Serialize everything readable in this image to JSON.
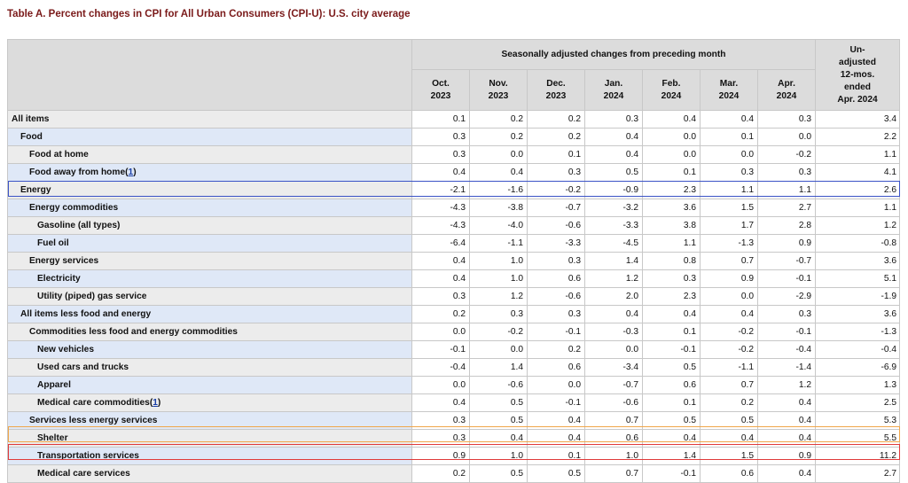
{
  "title": "Table A. Percent changes in CPI for All Urban Consumers (CPI-U): U.S. city average",
  "header": {
    "group_label": "Seasonally adjusted changes from preceding month",
    "months": [
      {
        "month": "Oct.",
        "year": "2023"
      },
      {
        "month": "Nov.",
        "year": "2023"
      },
      {
        "month": "Dec.",
        "year": "2023"
      },
      {
        "month": "Jan.",
        "year": "2024"
      },
      {
        "month": "Feb.",
        "year": "2024"
      },
      {
        "month": "Mar.",
        "year": "2024"
      },
      {
        "month": "Apr.",
        "year": "2024"
      }
    ],
    "unadjusted": {
      "l1": "Un-",
      "l2": "adjusted",
      "l3": "12-mos.",
      "l4": "ended",
      "l5": "Apr. 2024"
    }
  },
  "footnote_marker": "1",
  "highlights": {
    "energy": "#3b53c6",
    "shelter": "#f0a64a",
    "transportation": "#e03a3a"
  },
  "rows": [
    {
      "label": "All items",
      "indent": 0,
      "values": [
        "0.1",
        "0.2",
        "0.2",
        "0.3",
        "0.4",
        "0.4",
        "0.3"
      ],
      "unadj": "3.4"
    },
    {
      "label": "Food",
      "indent": 1,
      "values": [
        "0.3",
        "0.2",
        "0.2",
        "0.4",
        "0.0",
        "0.1",
        "0.0"
      ],
      "unadj": "2.2"
    },
    {
      "label": "Food at home",
      "indent": 2,
      "values": [
        "0.3",
        "0.0",
        "0.1",
        "0.4",
        "0.0",
        "0.0",
        "-0.2"
      ],
      "unadj": "1.1"
    },
    {
      "label": "Food away from home",
      "indent": 2,
      "footnote": true,
      "values": [
        "0.4",
        "0.4",
        "0.3",
        "0.5",
        "0.1",
        "0.3",
        "0.3"
      ],
      "unadj": "4.1"
    },
    {
      "label": "Energy",
      "indent": 1,
      "values": [
        "-2.1",
        "-1.6",
        "-0.2",
        "-0.9",
        "2.3",
        "1.1",
        "1.1"
      ],
      "unadj": "2.6"
    },
    {
      "label": "Energy commodities",
      "indent": 2,
      "values": [
        "-4.3",
        "-3.8",
        "-0.7",
        "-3.2",
        "3.6",
        "1.5",
        "2.7"
      ],
      "unadj": "1.1"
    },
    {
      "label": "Gasoline (all types)",
      "indent": 3,
      "values": [
        "-4.3",
        "-4.0",
        "-0.6",
        "-3.3",
        "3.8",
        "1.7",
        "2.8"
      ],
      "unadj": "1.2"
    },
    {
      "label": "Fuel oil",
      "indent": 3,
      "values": [
        "-6.4",
        "-1.1",
        "-3.3",
        "-4.5",
        "1.1",
        "-1.3",
        "0.9"
      ],
      "unadj": "-0.8"
    },
    {
      "label": "Energy services",
      "indent": 2,
      "values": [
        "0.4",
        "1.0",
        "0.3",
        "1.4",
        "0.8",
        "0.7",
        "-0.7"
      ],
      "unadj": "3.6"
    },
    {
      "label": "Electricity",
      "indent": 3,
      "values": [
        "0.4",
        "1.0",
        "0.6",
        "1.2",
        "0.3",
        "0.9",
        "-0.1"
      ],
      "unadj": "5.1"
    },
    {
      "label": "Utility (piped) gas service",
      "indent": 3,
      "values": [
        "0.3",
        "1.2",
        "-0.6",
        "2.0",
        "2.3",
        "0.0",
        "-2.9"
      ],
      "unadj": "-1.9"
    },
    {
      "label": "All items less food and energy",
      "indent": 1,
      "values": [
        "0.2",
        "0.3",
        "0.3",
        "0.4",
        "0.4",
        "0.4",
        "0.3"
      ],
      "unadj": "3.6"
    },
    {
      "label": "Commodities less food and energy commodities",
      "indent": 2,
      "values": [
        "0.0",
        "-0.2",
        "-0.1",
        "-0.3",
        "0.1",
        "-0.2",
        "-0.1"
      ],
      "unadj": "-1.3"
    },
    {
      "label": "New vehicles",
      "indent": 3,
      "values": [
        "-0.1",
        "0.0",
        "0.2",
        "0.0",
        "-0.1",
        "-0.2",
        "-0.4"
      ],
      "unadj": "-0.4"
    },
    {
      "label": "Used cars and trucks",
      "indent": 3,
      "values": [
        "-0.4",
        "1.4",
        "0.6",
        "-3.4",
        "0.5",
        "-1.1",
        "-1.4"
      ],
      "unadj": "-6.9"
    },
    {
      "label": "Apparel",
      "indent": 3,
      "values": [
        "0.0",
        "-0.6",
        "0.0",
        "-0.7",
        "0.6",
        "0.7",
        "1.2"
      ],
      "unadj": "1.3"
    },
    {
      "label": "Medical care commodities",
      "indent": 3,
      "footnote": true,
      "values": [
        "0.4",
        "0.5",
        "-0.1",
        "-0.6",
        "0.1",
        "0.2",
        "0.4"
      ],
      "unadj": "2.5"
    },
    {
      "label": "Services less energy services",
      "indent": 2,
      "values": [
        "0.3",
        "0.5",
        "0.4",
        "0.7",
        "0.5",
        "0.5",
        "0.4"
      ],
      "unadj": "5.3"
    },
    {
      "label": "Shelter",
      "indent": 3,
      "values": [
        "0.3",
        "0.4",
        "0.4",
        "0.6",
        "0.4",
        "0.4",
        "0.4"
      ],
      "unadj": "5.5"
    },
    {
      "label": "Transportation services",
      "indent": 3,
      "values": [
        "0.9",
        "1.0",
        "0.1",
        "1.0",
        "1.4",
        "1.5",
        "0.9"
      ],
      "unadj": "11.2"
    },
    {
      "label": "Medical care services",
      "indent": 3,
      "values": [
        "0.2",
        "0.5",
        "0.5",
        "0.7",
        "-0.1",
        "0.6",
        "0.4"
      ],
      "unadj": "2.7"
    }
  ]
}
